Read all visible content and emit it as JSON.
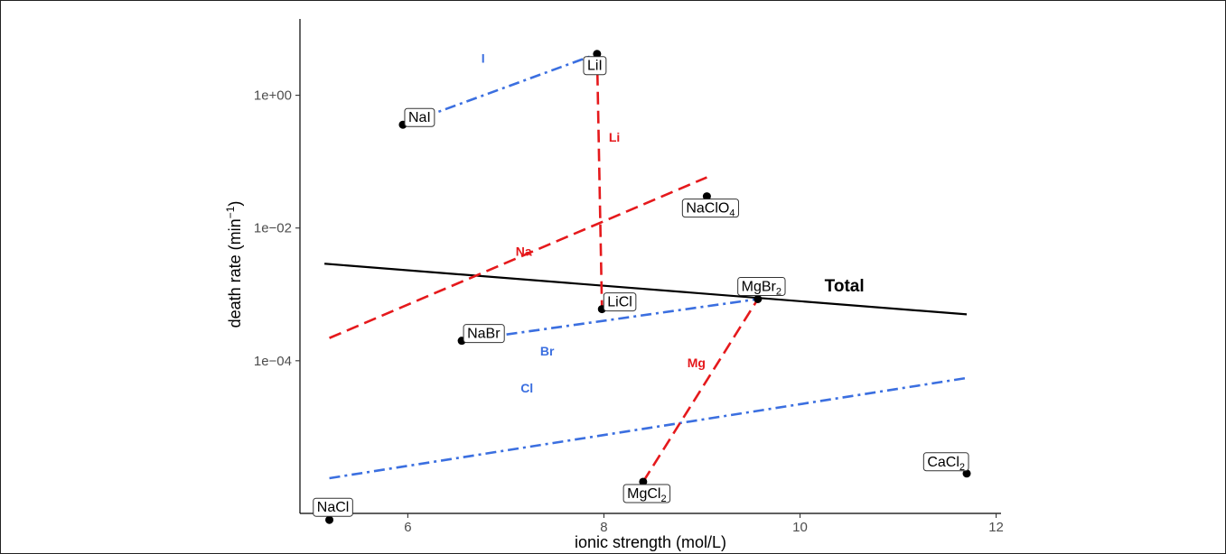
{
  "chart_data": {
    "type": "scatter",
    "xlabel": "ionic strength (mol/L)",
    "ylabel": "death rate (min",
    "ylabel_sup": "−1",
    "ylabel_end": ")",
    "xlim": [
      4.9,
      12.05
    ],
    "ylim_log10": [
      -6.3,
      1.15
    ],
    "y_scale": "log10",
    "x_ticks": [
      6,
      8,
      10,
      12
    ],
    "x_tick_labels": [
      "6",
      "8",
      "10",
      "12"
    ],
    "y_ticks_log10": [
      0,
      -2,
      -4
    ],
    "y_tick_labels": [
      "1e+00",
      "1e−02",
      "1e−04"
    ],
    "grid": false,
    "points": [
      {
        "name": "NaCl",
        "base": "NaCl",
        "sub": "",
        "x": 5.2,
        "y": 4e-07,
        "label_anchor": "above"
      },
      {
        "name": "NaI",
        "base": "NaI",
        "sub": "",
        "x": 5.95,
        "y": 0.36,
        "label_anchor": "above-right"
      },
      {
        "name": "NaBr",
        "base": "NaBr",
        "sub": "",
        "x": 6.55,
        "y": 0.0002,
        "label_anchor": "above-right"
      },
      {
        "name": "LiI",
        "base": "LiI",
        "sub": "",
        "x": 7.93,
        "y": 4.2,
        "label_anchor": "below-left"
      },
      {
        "name": "LiCl",
        "base": "LiCl",
        "sub": "",
        "x": 7.98,
        "y": 0.0006,
        "label_anchor": "above-right"
      },
      {
        "name": "MgCl2",
        "base": "MgCl",
        "sub": "2",
        "x": 8.4,
        "y": 1.5e-06,
        "label_anchor": "below"
      },
      {
        "name": "NaClO4",
        "base": "NaClO",
        "sub": "4",
        "x": 9.05,
        "y": 0.03,
        "label_anchor": "below"
      },
      {
        "name": "MgBr2",
        "base": "MgBr",
        "sub": "2",
        "x": 9.57,
        "y": 0.00085,
        "label_anchor": "above"
      },
      {
        "name": "CaCl2",
        "base": "CaCl",
        "sub": "2",
        "x": 11.7,
        "y": 2e-06,
        "label_anchor": "above-left"
      }
    ],
    "fit_lines": [
      {
        "name": "Total",
        "color": "#000000",
        "style": "solid",
        "x": [
          5.15,
          11.7
        ],
        "y": [
          0.0029,
          0.0005
        ],
        "label_x": 10.25,
        "label_y": 0.0011
      },
      {
        "name": "I",
        "color": "#3B6FE0",
        "style": "dashdot",
        "x": [
          5.95,
          7.93
        ],
        "y": [
          0.36,
          4.2
        ],
        "label_x": 6.75,
        "label_y": 3.1
      },
      {
        "name": "Br",
        "color": "#3B6FE0",
        "style": "dashdot",
        "x": [
          6.55,
          9.57
        ],
        "y": [
          0.0002,
          0.00085
        ],
        "label_x": 7.35,
        "label_y": 0.00012
      },
      {
        "name": "Cl",
        "color": "#3B6FE0",
        "style": "dashdot",
        "x": [
          5.2,
          11.7
        ],
        "y": [
          1.7e-06,
          5.5e-05
        ],
        "label_x": 7.15,
        "label_y": 3.3e-05
      },
      {
        "name": "Li",
        "color": "#E5191C",
        "style": "dashed",
        "x": [
          7.93,
          7.98
        ],
        "y": [
          4.2,
          0.0006
        ],
        "label_x": 8.05,
        "label_y": 0.2
      },
      {
        "name": "Na",
        "color": "#E5191C",
        "style": "dashed",
        "x": [
          5.2,
          9.05
        ],
        "y": [
          0.00022,
          0.058
        ],
        "label_x": 7.1,
        "label_y": 0.0038
      },
      {
        "name": "Mg",
        "color": "#E5191C",
        "style": "dashed",
        "x": [
          8.4,
          9.57
        ],
        "y": [
          1.5e-06,
          0.00085
        ],
        "label_x": 8.85,
        "label_y": 8e-05
      }
    ]
  }
}
